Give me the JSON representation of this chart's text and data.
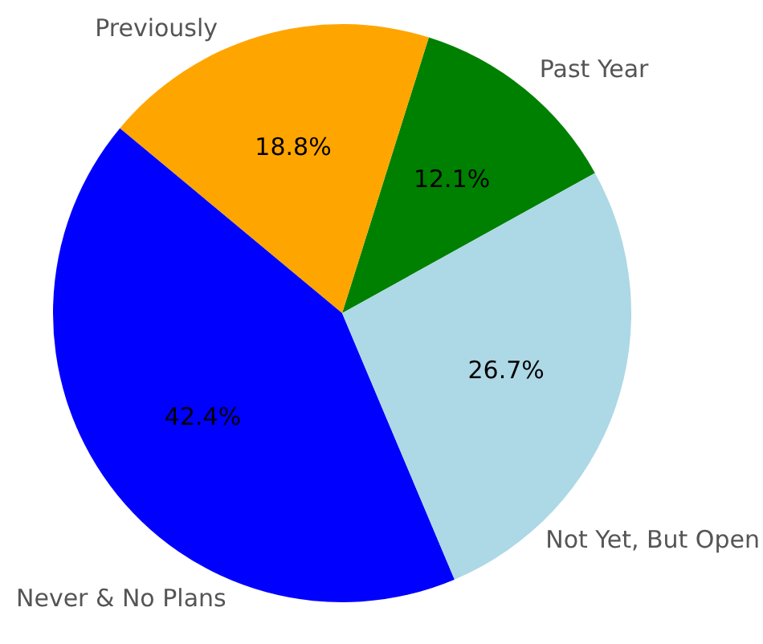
{
  "chart_data": {
    "type": "pie",
    "categories": [
      "Past Year",
      "Previously",
      "Never & No Plans",
      "Not Yet, But Open"
    ],
    "values": [
      12.1,
      18.8,
      42.4,
      26.7
    ],
    "colors": [
      "#008000",
      "#ffa500",
      "#0000ff",
      "#add8e6"
    ],
    "value_labels": [
      "12.1%",
      "18.8%",
      "42.4%",
      "26.7%"
    ],
    "legend": false
  }
}
